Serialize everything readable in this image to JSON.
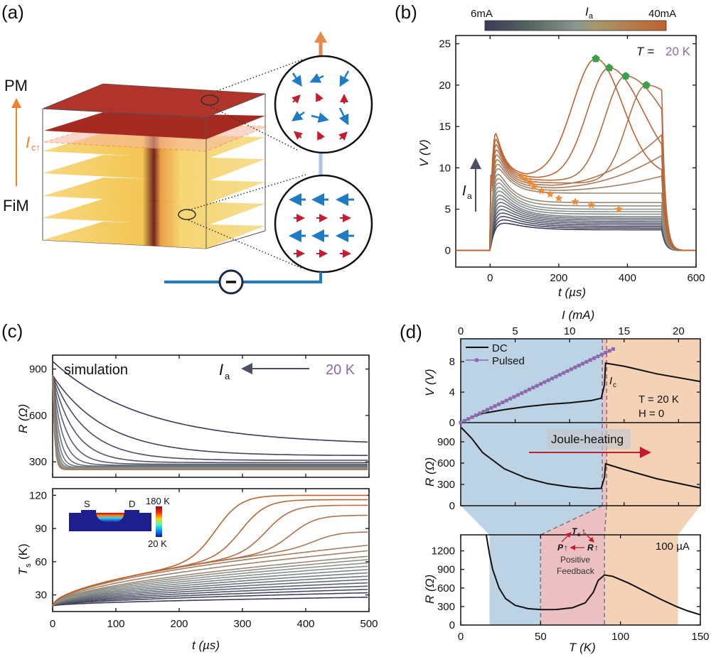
{
  "figure": {
    "panel_labels": [
      "(a)",
      "(b)",
      "(c)",
      "(d)"
    ],
    "colors": {
      "low_current": "#3b3a5a",
      "mid_current": "#8a9690",
      "high_current": "#c0622e",
      "star": "#f28a30",
      "pentagon": "#3aa04a",
      "purple_text": "#8a6aaa",
      "blue_region": "#bcd3e6",
      "pink_region": "#ecc0c2",
      "orange_region": "#f4d2b6",
      "arrow_blue": "#1e7bc4",
      "arrow_red": "#c41e2e",
      "orange_accent": "#f07f2e"
    }
  },
  "panel_a": {
    "labels": {
      "pm": "PM",
      "fim": "FiM",
      "ic": "I",
      "ic_sub": "c↑"
    },
    "icons": [
      "phase-arrow-icon",
      "paramagnetic-spin-icon",
      "ferrimagnetic-spin-icon",
      "current-source-icon"
    ]
  },
  "chart_data": [
    {
      "panel": "b",
      "type": "line",
      "title": "",
      "xlabel": "t (µs)",
      "ylabel": "V (V)",
      "xlim": [
        -100,
        600
      ],
      "ylim": [
        -2,
        26
      ],
      "xticks": [
        0,
        200,
        400,
        600
      ],
      "yticks": [
        0,
        5,
        10,
        15,
        20,
        25
      ],
      "colorbar": {
        "label": "I",
        "label_sub": "a",
        "min_label": "6mA",
        "max_label": "40mA"
      },
      "annotation_temperature": {
        "prefix": "T = ",
        "value": "20 K"
      },
      "arrow_label": "I",
      "arrow_label_sub": "a",
      "pulse_window": [
        0,
        500
      ],
      "series_count": 22,
      "series_plateau_V": [
        2.5,
        2.7,
        2.9,
        3.1,
        3.3,
        3.5,
        3.7,
        3.9,
        4.1,
        4.4,
        4.7,
        5.0,
        5.4,
        5.8,
        7.0,
        9.0,
        11.5,
        14.0,
        18.4,
        20.0,
        21.0,
        22.2
      ],
      "peak_points": [
        {
          "t": 308,
          "V": 23.2
        },
        {
          "t": 347,
          "V": 22.1
        },
        {
          "t": 395,
          "V": 21.1
        },
        {
          "t": 455,
          "V": 20.0
        }
      ],
      "star_points": [
        {
          "t": 92,
          "V": 9.0
        },
        {
          "t": 105,
          "V": 8.6
        },
        {
          "t": 118,
          "V": 8.2
        },
        {
          "t": 128,
          "V": 7.7
        },
        {
          "t": 150,
          "V": 7.2
        },
        {
          "t": 175,
          "V": 6.8
        },
        {
          "t": 200,
          "V": 6.3
        },
        {
          "t": 248,
          "V": 5.9
        },
        {
          "t": 295,
          "V": 5.5
        },
        {
          "t": 375,
          "V": 5.0
        }
      ]
    },
    {
      "panel": "c-top",
      "type": "line",
      "xlabel": "",
      "ylabel": "R (Ω)",
      "xlim": [
        0,
        500
      ],
      "ylim": [
        200,
        990
      ],
      "yticks": [
        300,
        600,
        900
      ],
      "annotations": {
        "simulation": "simulation",
        "arrow_label": "I",
        "arrow_label_sub": "a",
        "temperature": "20 K"
      },
      "start_R": 860,
      "series_final_R": [
        400,
        340,
        310,
        295,
        285,
        278,
        272,
        268,
        264,
        261,
        258,
        256,
        254,
        252,
        251,
        250,
        250
      ],
      "peak_curves": [
        {
          "t_peak": 300,
          "R_peak": 815
        },
        {
          "t_peak": 337,
          "R_peak": 815
        },
        {
          "t_peak": 382,
          "R_peak": 815
        },
        {
          "t_peak": 440,
          "R_peak": 815
        },
        {
          "t_peak": 500,
          "R_peak": 810
        }
      ]
    },
    {
      "panel": "c-bottom",
      "type": "line",
      "xlabel": "t (µs)",
      "ylabel": "T",
      "ylabel_sub": "s",
      "ylabel_unit": "(K)",
      "xlim": [
        0,
        500
      ],
      "ylim": [
        15,
        126
      ],
      "xticks": [
        0,
        100,
        200,
        300,
        400,
        500
      ],
      "yticks": [
        30,
        60,
        90,
        120
      ],
      "inset": {
        "source": "S",
        "drain": "D",
        "scale_max": "180 K",
        "scale_min": "20 K"
      },
      "series_final_T": [
        28,
        32,
        35,
        38,
        41,
        44,
        47,
        50,
        53,
        56,
        59,
        62,
        65,
        70,
        75,
        87,
        102,
        111,
        116,
        120
      ]
    },
    {
      "panel": "d-top",
      "type": "line",
      "xlabel": "I (mA)",
      "ylabel": "V (V)",
      "xlim": [
        0,
        22
      ],
      "ylim": [
        0,
        11
      ],
      "xticks": [
        0,
        5,
        10,
        15,
        20
      ],
      "yticks": [
        0,
        4,
        8
      ],
      "legend": [
        {
          "name": "DC"
        },
        {
          "name": "Pulsed"
        }
      ],
      "legend_position": "top-left",
      "annotations": {
        "ic": "I",
        "ic_sub": "c",
        "temperature": "T = 20 K",
        "field": "H = 0"
      },
      "dc_points": [
        [
          0,
          0
        ],
        [
          1,
          0.7
        ],
        [
          2,
          1.2
        ],
        [
          4,
          1.7
        ],
        [
          6,
          2.1
        ],
        [
          8,
          2.4
        ],
        [
          10,
          2.6
        ],
        [
          12,
          2.9
        ],
        [
          12.9,
          3.2
        ],
        [
          13.2,
          5
        ],
        [
          13.3,
          7.8
        ],
        [
          15,
          7.4
        ],
        [
          18,
          6.4
        ],
        [
          22,
          5.4
        ]
      ],
      "pulsed_points": [
        [
          0,
          0
        ],
        [
          2,
          1.4
        ],
        [
          4,
          2.8
        ],
        [
          6,
          4.2
        ],
        [
          8,
          5.6
        ],
        [
          10,
          7.0
        ],
        [
          12,
          8.4
        ],
        [
          13,
          9.0
        ],
        [
          14,
          9.6
        ]
      ]
    },
    {
      "panel": "d-middle",
      "type": "line",
      "ylabel": "R (Ω)",
      "xlim": [
        0,
        22
      ],
      "ylim": [
        0,
        1170
      ],
      "yticks": [
        0,
        300,
        600,
        900
      ],
      "annotation": "Joule-heating",
      "dc_points": [
        [
          0.05,
          1100
        ],
        [
          1,
          950
        ],
        [
          2,
          750
        ],
        [
          4,
          520
        ],
        [
          6,
          390
        ],
        [
          8,
          310
        ],
        [
          10,
          265
        ],
        [
          12,
          240
        ],
        [
          12.9,
          245
        ],
        [
          13.2,
          400
        ],
        [
          13.3,
          590
        ],
        [
          15,
          510
        ],
        [
          18,
          380
        ],
        [
          22,
          250
        ]
      ]
    },
    {
      "panel": "d-bottom",
      "type": "line",
      "xlabel": "T (K)",
      "ylabel": "R (Ω)",
      "xlim": [
        0,
        150
      ],
      "ylim": [
        0,
        1460
      ],
      "xticks": [
        0,
        50,
        100,
        150
      ],
      "yticks": [
        0,
        300,
        600,
        900,
        1200
      ],
      "annotation_current": "100 µA",
      "feedback": {
        "ts": "T",
        "ts_sub": "s",
        "p": "P",
        "r": "R",
        "line1": "Positive",
        "line2": "Feedback"
      },
      "regions": [
        {
          "name": "blue",
          "from": 18,
          "to": 50
        },
        {
          "name": "pink",
          "from": 50,
          "to": 90
        },
        {
          "name": "orange",
          "from": 90,
          "to": 136
        }
      ],
      "curve_points": [
        [
          16,
          1460
        ],
        [
          18,
          1150
        ],
        [
          20,
          900
        ],
        [
          24,
          600
        ],
        [
          28,
          430
        ],
        [
          34,
          320
        ],
        [
          42,
          265
        ],
        [
          50,
          250
        ],
        [
          60,
          252
        ],
        [
          70,
          280
        ],
        [
          78,
          360
        ],
        [
          83,
          530
        ],
        [
          86,
          720
        ],
        [
          90,
          810
        ],
        [
          95,
          790
        ],
        [
          105,
          680
        ],
        [
          115,
          550
        ],
        [
          125,
          420
        ],
        [
          135,
          300
        ],
        [
          142,
          230
        ],
        [
          150,
          165
        ]
      ]
    }
  ]
}
